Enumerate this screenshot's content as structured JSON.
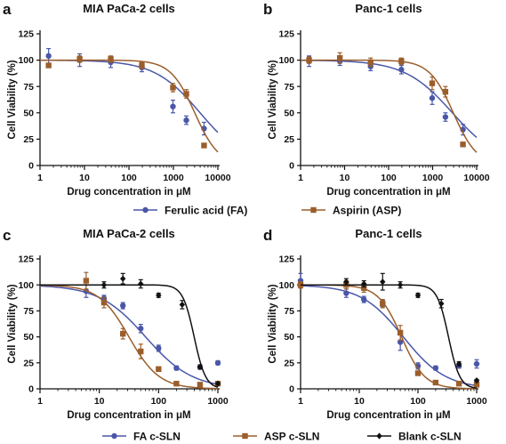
{
  "figure": {
    "legend_top": [
      {
        "label": "Ferulic acid (FA)",
        "color": "#4a57a8",
        "marker": "circle"
      },
      {
        "label": "Aspirin (ASP)",
        "color": "#9b5e2b",
        "marker": "square"
      }
    ],
    "legend_bottom": [
      {
        "label": "FA c-SLN",
        "color": "#4a57a8",
        "marker": "circle"
      },
      {
        "label": "ASP c-SLN",
        "color": "#9b5e2b",
        "marker": "square"
      },
      {
        "label": "Blank c-SLN",
        "color": "#111111",
        "marker": "diamond"
      }
    ]
  },
  "chart_data": [
    {
      "panel": "a",
      "type": "scatter",
      "title": "MIA PaCa-2 cells",
      "xlabel": "Drug concentration in μM",
      "ylabel": "Cell Viability (%)",
      "xscale": "log",
      "xlim": [
        1,
        10000
      ],
      "ylim": [
        0,
        125
      ],
      "xticks": [
        "1",
        "10",
        "100",
        "1000",
        "10000"
      ],
      "yticks": [
        "0",
        "25",
        "50",
        "75",
        "100",
        "125"
      ],
      "series": [
        {
          "name": "Ferulic acid (FA)",
          "color": "#4a57a8",
          "marker": "circle",
          "x": [
            1.56,
            7.8,
            39,
            195,
            977,
            1953,
            4883
          ],
          "y": [
            104,
            100,
            98,
            93,
            56,
            43,
            35
          ],
          "err": [
            7,
            6,
            5,
            4,
            6,
            4,
            6
          ],
          "fit": {
            "top": 100,
            "bottom": 0,
            "logec50": 3.6,
            "hill": 0.85
          }
        },
        {
          "name": "Aspirin (ASP)",
          "color": "#9b5e2b",
          "marker": "square",
          "x": [
            1.56,
            7.8,
            39,
            195,
            977,
            1953,
            4883
          ],
          "y": [
            95,
            101,
            101,
            95,
            74,
            68,
            19
          ],
          "err": [
            2,
            3,
            3,
            3,
            4,
            4,
            2
          ],
          "fit": {
            "top": 100,
            "bottom": 0,
            "logec50": 3.48,
            "hill": 1.6
          }
        }
      ]
    },
    {
      "panel": "b",
      "type": "scatter",
      "title": "Panc-1 cells",
      "xlabel": "Drug concentration in μM",
      "ylabel": "Cell Viability (%)",
      "xscale": "log",
      "xlim": [
        1,
        10000
      ],
      "ylim": [
        0,
        125
      ],
      "xticks": [
        "1",
        "10",
        "100",
        "1000",
        "10000"
      ],
      "yticks": [
        "0",
        "25",
        "50",
        "75",
        "100",
        "125"
      ],
      "series": [
        {
          "name": "Ferulic acid (FA)",
          "color": "#4a57a8",
          "marker": "circle",
          "x": [
            1.56,
            7.8,
            39,
            195,
            977,
            1953,
            4883
          ],
          "y": [
            99,
            99,
            94,
            91,
            64,
            46,
            34
          ],
          "err": [
            5,
            4,
            4,
            4,
            6,
            4,
            5
          ],
          "fit": {
            "top": 100,
            "bottom": 0,
            "logec50": 3.45,
            "hill": 0.8
          }
        },
        {
          "name": "Aspirin (ASP)",
          "color": "#9b5e2b",
          "marker": "square",
          "x": [
            1.56,
            7.8,
            39,
            195,
            977,
            1953,
            4883
          ],
          "y": [
            100,
            102,
            98,
            99,
            78,
            70,
            20
          ],
          "err": [
            3,
            5,
            4,
            3,
            6,
            5,
            2
          ],
          "fit": {
            "top": 100,
            "bottom": 0,
            "logec50": 3.47,
            "hill": 1.6
          }
        }
      ]
    },
    {
      "panel": "c",
      "type": "scatter",
      "title": "MIA PaCa-2 cells",
      "xlabel": "Drug concentration in μM",
      "ylabel": "Cell Viability (%)",
      "xscale": "log",
      "xlim": [
        1,
        1000
      ],
      "ylim": [
        0,
        125
      ],
      "xticks": [
        "1",
        "10",
        "100",
        "1000"
      ],
      "yticks": [
        "0",
        "25",
        "50",
        "75",
        "100",
        "125"
      ],
      "series": [
        {
          "name": "FA c-SLN",
          "color": "#4a57a8",
          "marker": "circle",
          "x": [
            6,
            12,
            25,
            50,
            100,
            200,
            500,
            1000
          ],
          "y": [
            94,
            87,
            80,
            58,
            39,
            20,
            21,
            25
          ],
          "err": [
            6,
            3,
            3,
            4,
            3,
            2,
            2,
            2
          ],
          "fit": {
            "top": 100,
            "bottom": 0,
            "logec50": 1.78,
            "hill": 1.1
          }
        },
        {
          "name": "ASP c-SLN",
          "color": "#9b5e2b",
          "marker": "square",
          "x": [
            6,
            12,
            25,
            50,
            100,
            200,
            500,
            1000
          ],
          "y": [
            104,
            83,
            53,
            36,
            19,
            5,
            4,
            5
          ],
          "err": [
            8,
            5,
            5,
            7,
            2,
            1,
            1,
            1
          ],
          "fit": {
            "top": 100,
            "bottom": 0,
            "logec50": 1.5,
            "hill": 1.7
          }
        },
        {
          "name": "Blank c-SLN",
          "color": "#111111",
          "marker": "diamond",
          "x": [
            12,
            25,
            50,
            100,
            250,
            500,
            1000
          ],
          "y": [
            100,
            106,
            101,
            90,
            81,
            21,
            5
          ],
          "err": [
            3,
            5,
            4,
            2,
            4,
            2,
            1
          ],
          "fit": {
            "top": 100,
            "bottom": 0,
            "logec50": 2.6,
            "hill": 4.5
          }
        }
      ]
    },
    {
      "panel": "d",
      "type": "scatter",
      "title": "Panc-1 cells",
      "xlabel": "Drug concentration in μM",
      "ylabel": "Cell Viability (%)",
      "xscale": "log",
      "xlim": [
        1,
        1000
      ],
      "ylim": [
        0,
        125
      ],
      "xticks": [
        "1",
        "10",
        "100",
        "1000"
      ],
      "yticks": [
        "0",
        "25",
        "50",
        "75",
        "100",
        "125"
      ],
      "series": [
        {
          "name": "FA c-SLN",
          "color": "#4a57a8",
          "marker": "circle",
          "x": [
            1,
            6,
            12,
            25,
            50,
            100,
            200,
            500,
            1000
          ],
          "y": [
            104,
            92,
            86,
            82,
            45,
            22,
            20,
            22,
            24
          ],
          "err": [
            7,
            4,
            3,
            3,
            8,
            3,
            2,
            2,
            4
          ],
          "fit": {
            "top": 100,
            "bottom": 0,
            "logec50": 1.75,
            "hill": 1.2
          }
        },
        {
          "name": "ASP c-SLN",
          "color": "#9b5e2b",
          "marker": "square",
          "x": [
            1,
            6,
            12,
            25,
            50,
            100,
            200,
            500,
            1000
          ],
          "y": [
            100,
            100,
            97,
            82,
            54,
            15,
            6,
            5,
            4
          ],
          "err": [
            3,
            4,
            4,
            4,
            7,
            2,
            1,
            1,
            1
          ],
          "fit": {
            "top": 100,
            "bottom": 0,
            "logec50": 1.72,
            "hill": 2.2
          }
        },
        {
          "name": "Blank c-SLN",
          "color": "#111111",
          "marker": "diamond",
          "x": [
            6,
            12,
            25,
            50,
            100,
            250,
            500,
            1000
          ],
          "y": [
            103,
            101,
            103,
            100,
            90,
            82,
            24,
            8
          ],
          "err": [
            3,
            3,
            8,
            3,
            2,
            4,
            2,
            1
          ],
          "fit": {
            "top": 100,
            "bottom": 0,
            "logec50": 2.52,
            "hill": 4.5
          }
        }
      ]
    }
  ]
}
